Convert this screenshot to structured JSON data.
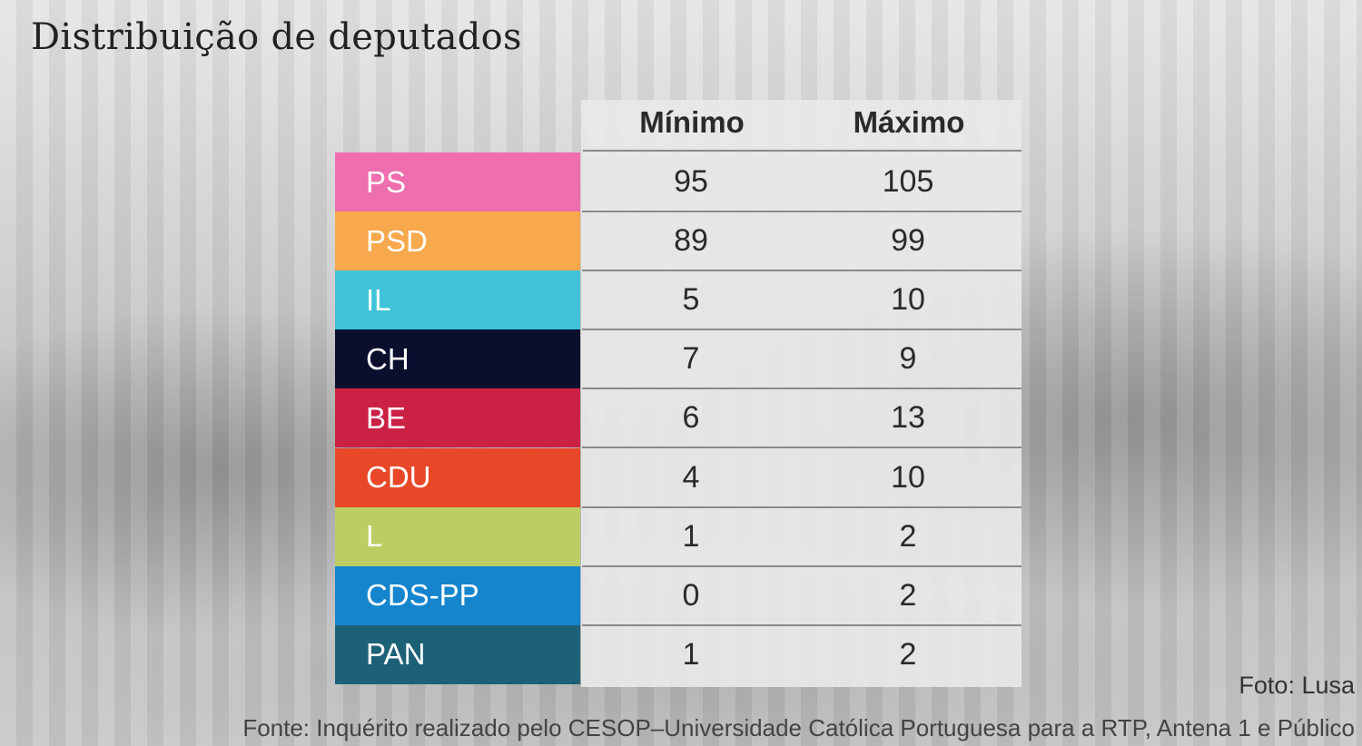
{
  "title": "Distribuição de deputados",
  "chart_data": {
    "type": "table",
    "title": "Distribuição de deputados",
    "columns": [
      "Mínimo",
      "Máximo"
    ],
    "rows": [
      {
        "party": "PS",
        "color": "#EE6EAE",
        "min": 95,
        "max": 105
      },
      {
        "party": "PSD",
        "color": "#F8A84D",
        "min": 89,
        "max": 99
      },
      {
        "party": "IL",
        "color": "#40C3D8",
        "min": 5,
        "max": 10
      },
      {
        "party": "CH",
        "color": "#0A0F2E",
        "min": 7,
        "max": 9
      },
      {
        "party": "BE",
        "color": "#CB2145",
        "min": 6,
        "max": 13
      },
      {
        "party": "CDU",
        "color": "#E84728",
        "min": 4,
        "max": 10
      },
      {
        "party": "L",
        "color": "#BDCD63",
        "min": 1,
        "max": 2
      },
      {
        "party": "CDS-PP",
        "color": "#1585CE",
        "min": 0,
        "max": 2
      },
      {
        "party": "PAN",
        "color": "#1D6176",
        "min": 1,
        "max": 2
      }
    ]
  },
  "credit": "Foto: Lusa",
  "source": "Fonte: Inquérito realizado pelo CESOP–Universidade Católica Portuguesa para a RTP, Antena 1 e Público"
}
